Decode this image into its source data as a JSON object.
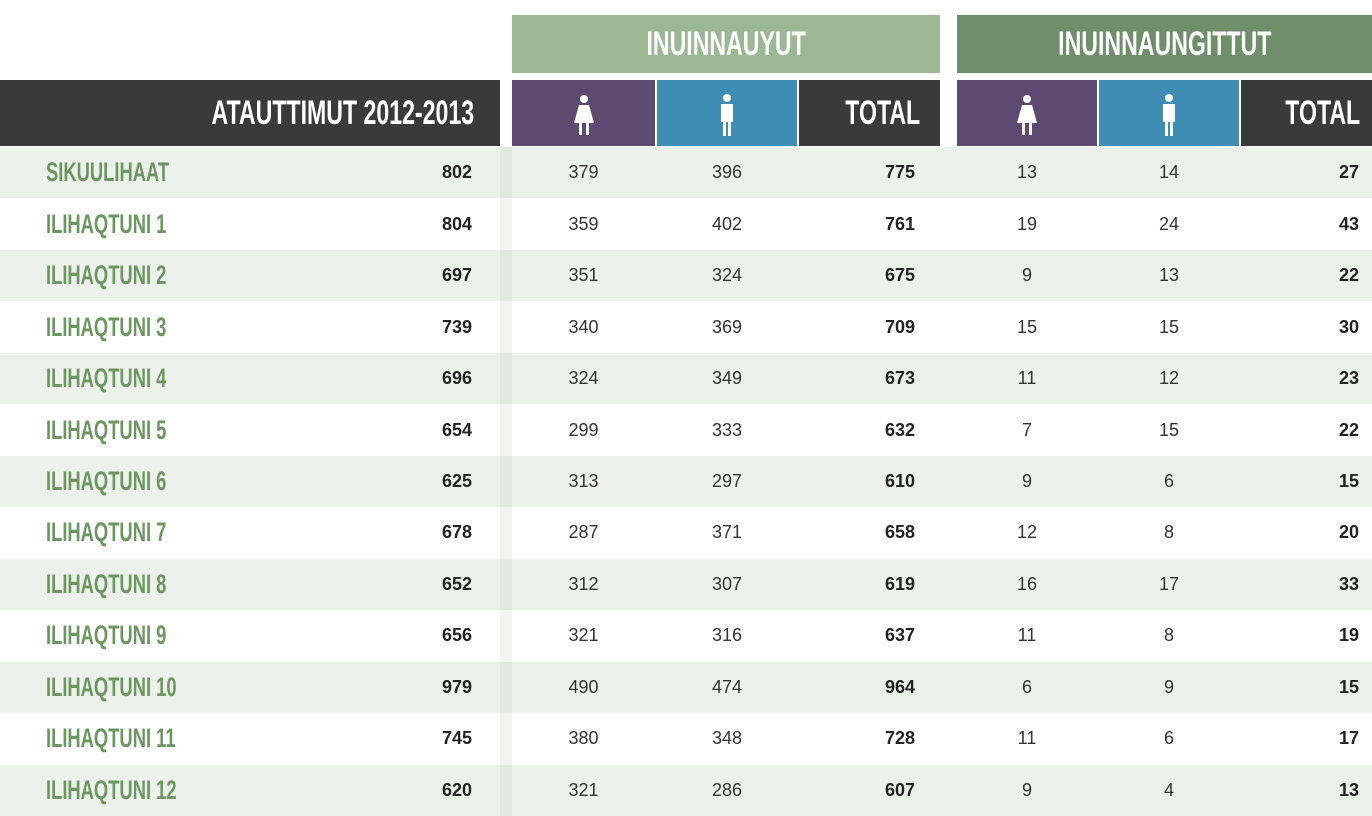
{
  "header": {
    "overall": "ATAUTTIMUT 2012-2013",
    "group1": {
      "title": "INUINNAUYUT",
      "total": "TOTAL"
    },
    "group2": {
      "title": "INUINNAUNGITTUT",
      "total": "TOTAL"
    }
  },
  "table": {
    "rows": [
      [
        "SIKUULIHAAT",
        "802",
        "379",
        "396",
        "775",
        "13",
        "14",
        "27"
      ],
      [
        "ILIHAQTUNI 1",
        "804",
        "359",
        "402",
        "761",
        "19",
        "24",
        "43"
      ],
      [
        "ILIHAQTUNI 2",
        "697",
        "351",
        "324",
        "675",
        "9",
        "13",
        "22"
      ],
      [
        "ILIHAQTUNI 3",
        "739",
        "340",
        "369",
        "709",
        "15",
        "15",
        "30"
      ],
      [
        "ILIHAQTUNI 4",
        "696",
        "324",
        "349",
        "673",
        "11",
        "12",
        "23"
      ],
      [
        "ILIHAQTUNI 5",
        "654",
        "299",
        "333",
        "632",
        "7",
        "15",
        "22"
      ],
      [
        "ILIHAQTUNI 6",
        "625",
        "313",
        "297",
        "610",
        "9",
        "6",
        "15"
      ],
      [
        "ILIHAQTUNI 7",
        "678",
        "287",
        "371",
        "658",
        "12",
        "8",
        "20"
      ],
      [
        "ILIHAQTUNI 8",
        "652",
        "312",
        "307",
        "619",
        "16",
        "17",
        "33"
      ],
      [
        "ILIHAQTUNI 9",
        "656",
        "321",
        "316",
        "637",
        "11",
        "8",
        "19"
      ],
      [
        "ILIHAQTUNI 10",
        "979",
        "490",
        "474",
        "964",
        "6",
        "9",
        "15"
      ],
      [
        "ILIHAQTUNI 11",
        "745",
        "380",
        "348",
        "728",
        "11",
        "6",
        "17"
      ],
      [
        "ILIHAQTUNI 12",
        "620",
        "321",
        "286",
        "607",
        "9",
        "4",
        "13"
      ]
    ]
  }
}
